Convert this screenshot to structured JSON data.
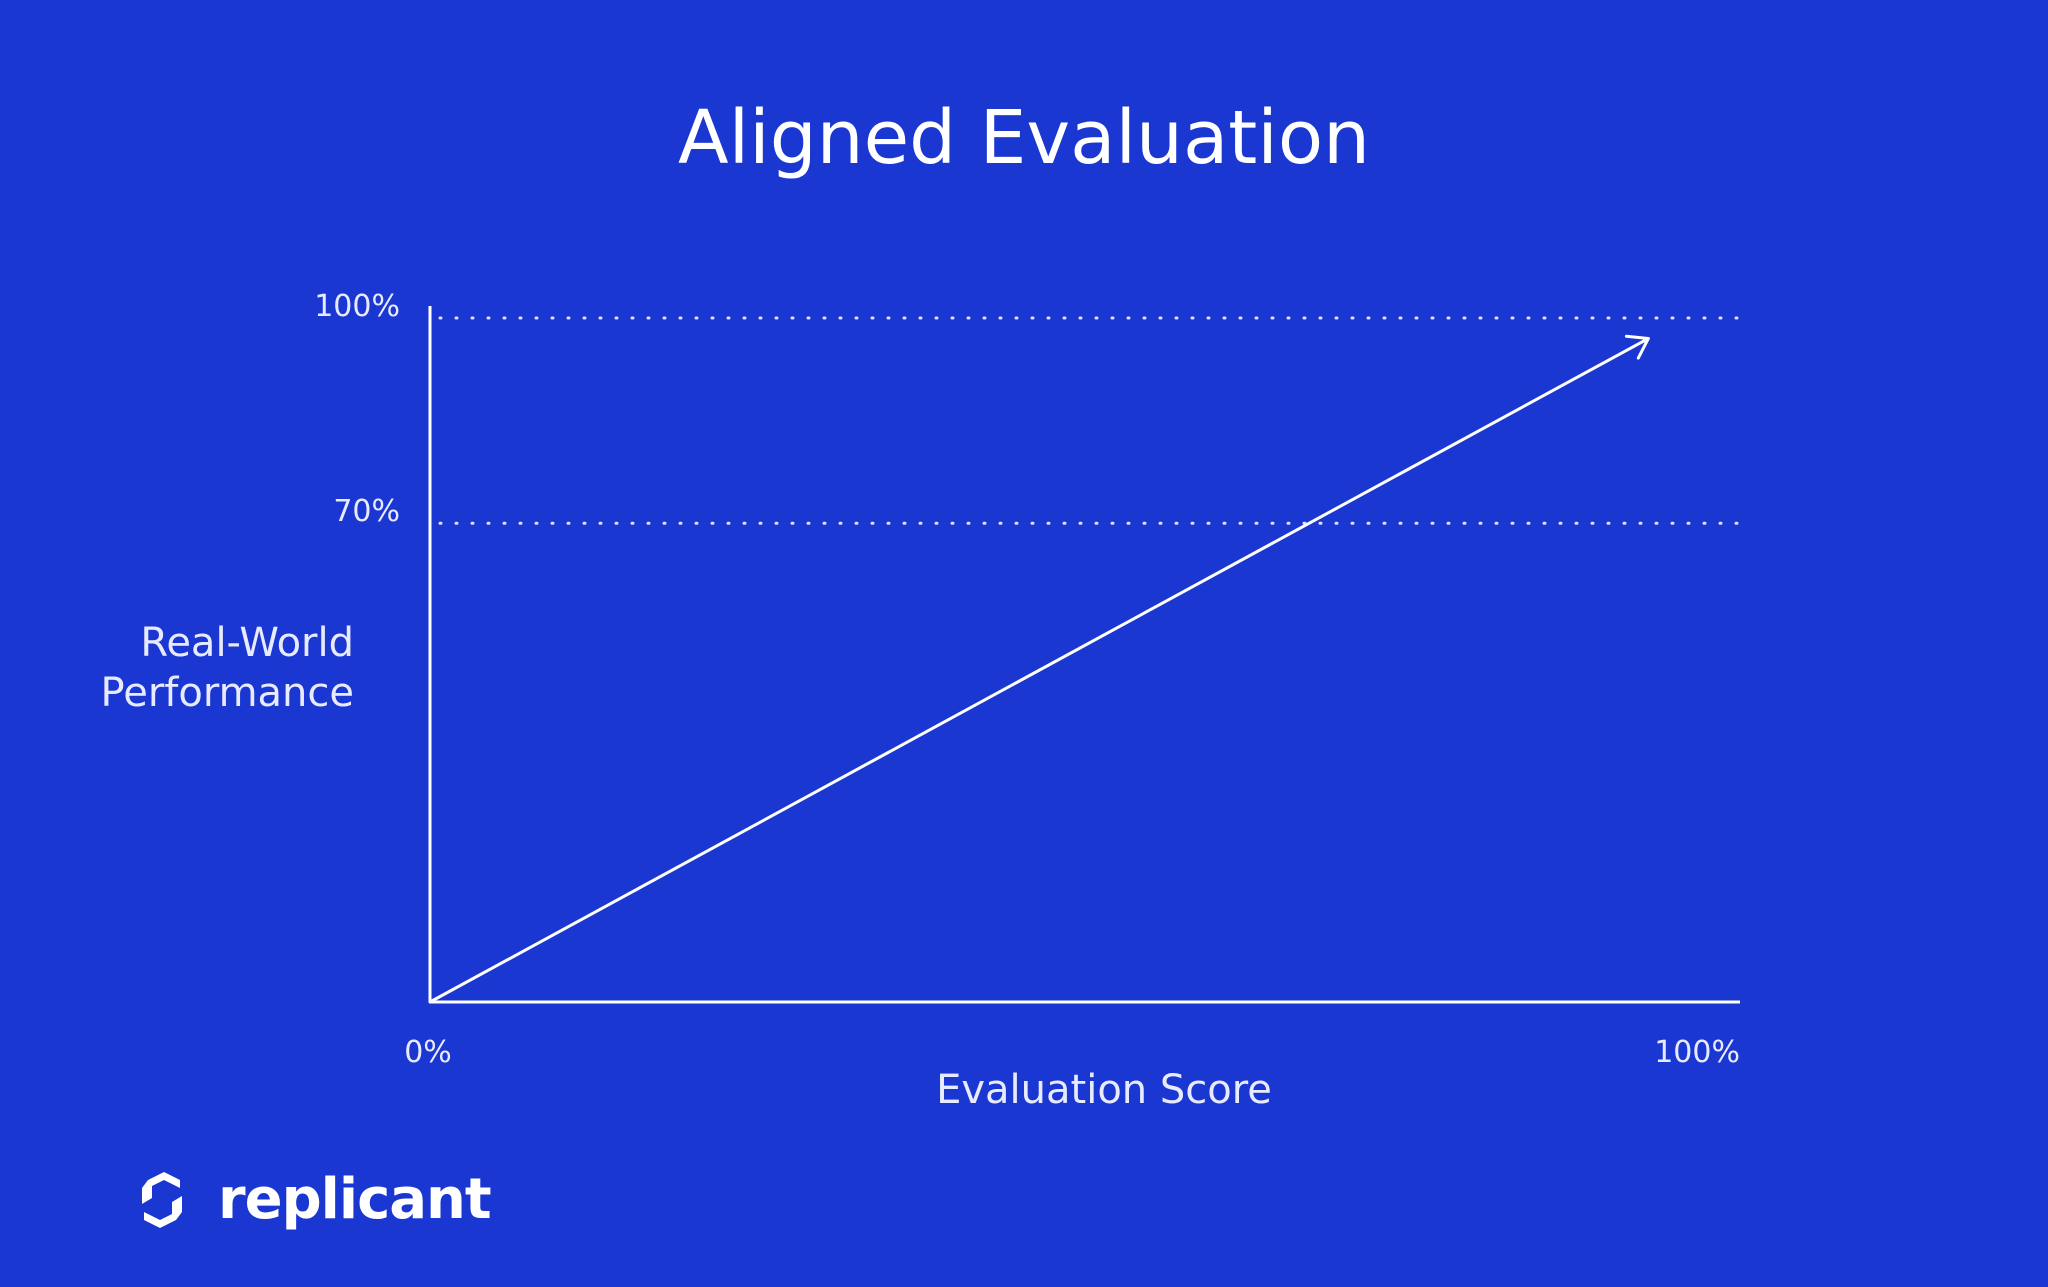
{
  "chart_data": {
    "type": "line",
    "title": "Aligned Evaluation",
    "xlabel": "Evaluation Score",
    "ylabel": "Real-World\nPerformance",
    "xlim": [
      0,
      100
    ],
    "ylim": [
      0,
      100
    ],
    "x_tick_labels": [
      "0%",
      "100%"
    ],
    "y_tick_labels": [
      "100%",
      "70%"
    ],
    "x_ticks": [
      0,
      100
    ],
    "y_ticks": [
      100,
      70
    ],
    "reference_lines": [
      100,
      70
    ],
    "series": [
      {
        "x": [
          0,
          93
        ],
        "y": [
          0,
          97
        ],
        "style": "arrow"
      }
    ],
    "grid": "dotted horizontal reference lines"
  },
  "brand": {
    "name": "replicant"
  },
  "colors": {
    "background": "#1a37d2",
    "foreground": "#ffffff"
  }
}
